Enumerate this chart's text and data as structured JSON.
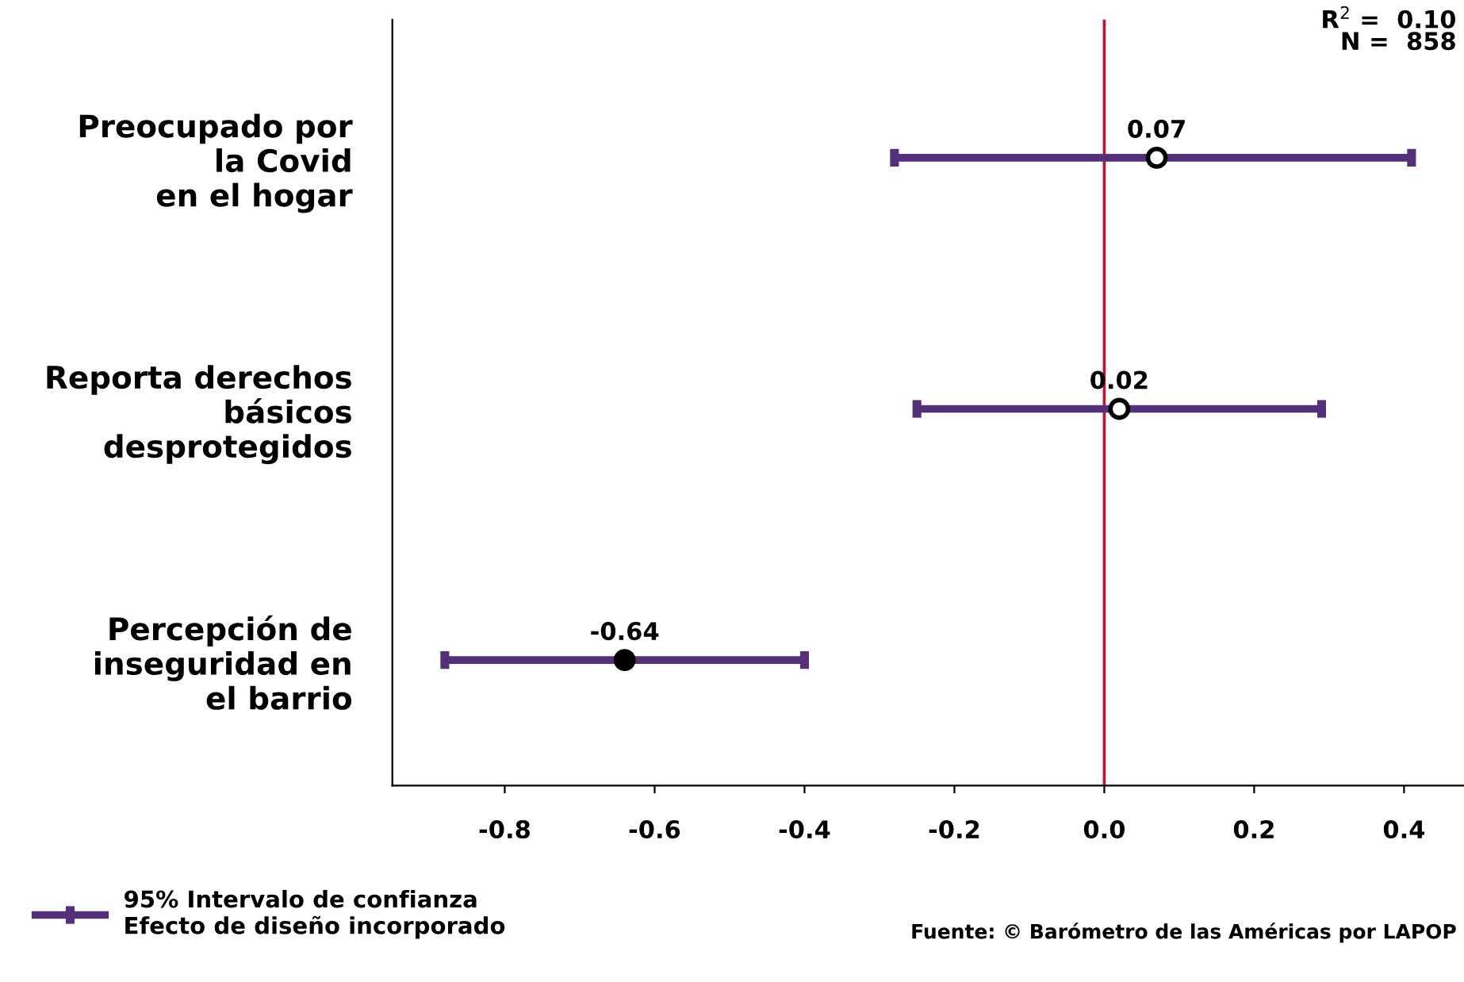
{
  "chart_data": {
    "type": "scatter",
    "orientation": "horizontal",
    "categories": [
      "Preocupado por\nla Covid\nen el hogar",
      "Reporta derechos\nbásicos\ndesprotegidos",
      "Percepción de\ninseguridad en\nel barrio"
    ],
    "series": [
      {
        "name": "95% Intervalo de confianza\nEfecto de diseño incorporado",
        "color": "#55307a",
        "colors": [
          "#ffffff",
          "#ffffff",
          "#000000"
        ],
        "values": [
          0.07,
          0.02,
          -0.64
        ],
        "errors": [
          [
            -0.28,
            0.41
          ],
          [
            -0.25,
            0.29
          ],
          [
            -0.88,
            -0.4
          ]
        ]
      }
    ],
    "data_labels": true,
    "xlim": [
      -0.95,
      0.48
    ],
    "xticks": [
      -0.8,
      -0.6,
      -0.4,
      -0.2,
      {
        "value": 0,
        "label": "0.0"
      },
      0.2,
      0.4
    ],
    "ref_lines": [
      {
        "axis": "x",
        "value": 0,
        "color": "#c8102e"
      }
    ],
    "annotations": [
      "R$^{2}$ =  0.10\nN =  858",
      "Fuente: © Barómetro de las Américas por LAPOP"
    ],
    "legend": "bottom left",
    "marker": "circle",
    "grid": false
  }
}
